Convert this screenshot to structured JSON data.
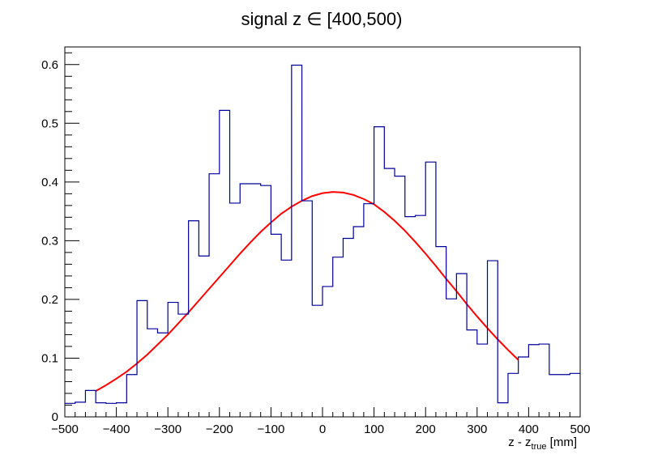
{
  "chart_data": {
    "type": "histogram",
    "title": "signal z ∈ [400,500)",
    "xlabel": {
      "main": "z - z",
      "subscript": "true",
      "suffix": " [mm]"
    },
    "ylabel": "",
    "xlim": [
      -500,
      500
    ],
    "ylim": [
      0,
      0.63
    ],
    "grid": false,
    "legend": "none",
    "x_ticks": [
      -500,
      -400,
      -300,
      -200,
      -100,
      0,
      100,
      200,
      300,
      400,
      500
    ],
    "x_tick_labels": [
      "−500",
      "−400",
      "−300",
      "−200",
      "−100",
      "0",
      "100",
      "200",
      "300",
      "400",
      "500"
    ],
    "y_ticks": [
      0,
      0.1,
      0.2,
      0.3,
      0.4,
      0.5,
      0.6
    ],
    "y_tick_labels": [
      "0",
      "0.1",
      "0.2",
      "0.3",
      "0.4",
      "0.5",
      "0.6"
    ],
    "bin_edges": [
      -500,
      -480,
      -460,
      -440,
      -420,
      -400,
      -380,
      -360,
      -340,
      -320,
      -300,
      -280,
      -260,
      -240,
      -220,
      -200,
      -180,
      -160,
      -140,
      -120,
      -100,
      -80,
      -60,
      -40,
      -20,
      0,
      20,
      40,
      60,
      80,
      100,
      120,
      140,
      160,
      180,
      200,
      220,
      240,
      260,
      280,
      300,
      320,
      340,
      360,
      380,
      400,
      420,
      440,
      460,
      480,
      500
    ],
    "histogram_values": [
      0.023,
      0.025,
      0.045,
      0.024,
      0.023,
      0.024,
      0.072,
      0.198,
      0.15,
      0.143,
      0.195,
      0.175,
      0.334,
      0.274,
      0.414,
      0.522,
      0.364,
      0.397,
      0.397,
      0.394,
      0.311,
      0.267,
      0.599,
      0.368,
      0.19,
      0.222,
      0.272,
      0.304,
      0.324,
      0.363,
      0.494,
      0.423,
      0.41,
      0.341,
      0.343,
      0.434,
      0.29,
      0.201,
      0.244,
      0.148,
      0.124,
      0.266,
      0.024,
      0.074,
      0.102,
      0.123,
      0.124,
      0.072,
      0.072,
      0.074
    ],
    "fit_curve": {
      "color": "#ff0000",
      "x": [
        -440,
        -420,
        -400,
        -380,
        -360,
        -340,
        -320,
        -300,
        -280,
        -260,
        -240,
        -220,
        -200,
        -180,
        -160,
        -140,
        -120,
        -100,
        -80,
        -60,
        -40,
        -20,
        0,
        20,
        40,
        60,
        80,
        100,
        120,
        140,
        160,
        180,
        200,
        220,
        240,
        260,
        280,
        300,
        320,
        340,
        360,
        380
      ],
      "y": [
        0.044,
        0.054,
        0.065,
        0.077,
        0.091,
        0.106,
        0.123,
        0.14,
        0.159,
        0.178,
        0.198,
        0.218,
        0.238,
        0.258,
        0.278,
        0.297,
        0.315,
        0.331,
        0.346,
        0.358,
        0.368,
        0.376,
        0.381,
        0.383,
        0.382,
        0.378,
        0.371,
        0.362,
        0.349,
        0.334,
        0.317,
        0.298,
        0.278,
        0.257,
        0.235,
        0.214,
        0.192,
        0.171,
        0.151,
        0.132,
        0.114,
        0.097
      ]
    },
    "histogram_color": "#000099"
  }
}
